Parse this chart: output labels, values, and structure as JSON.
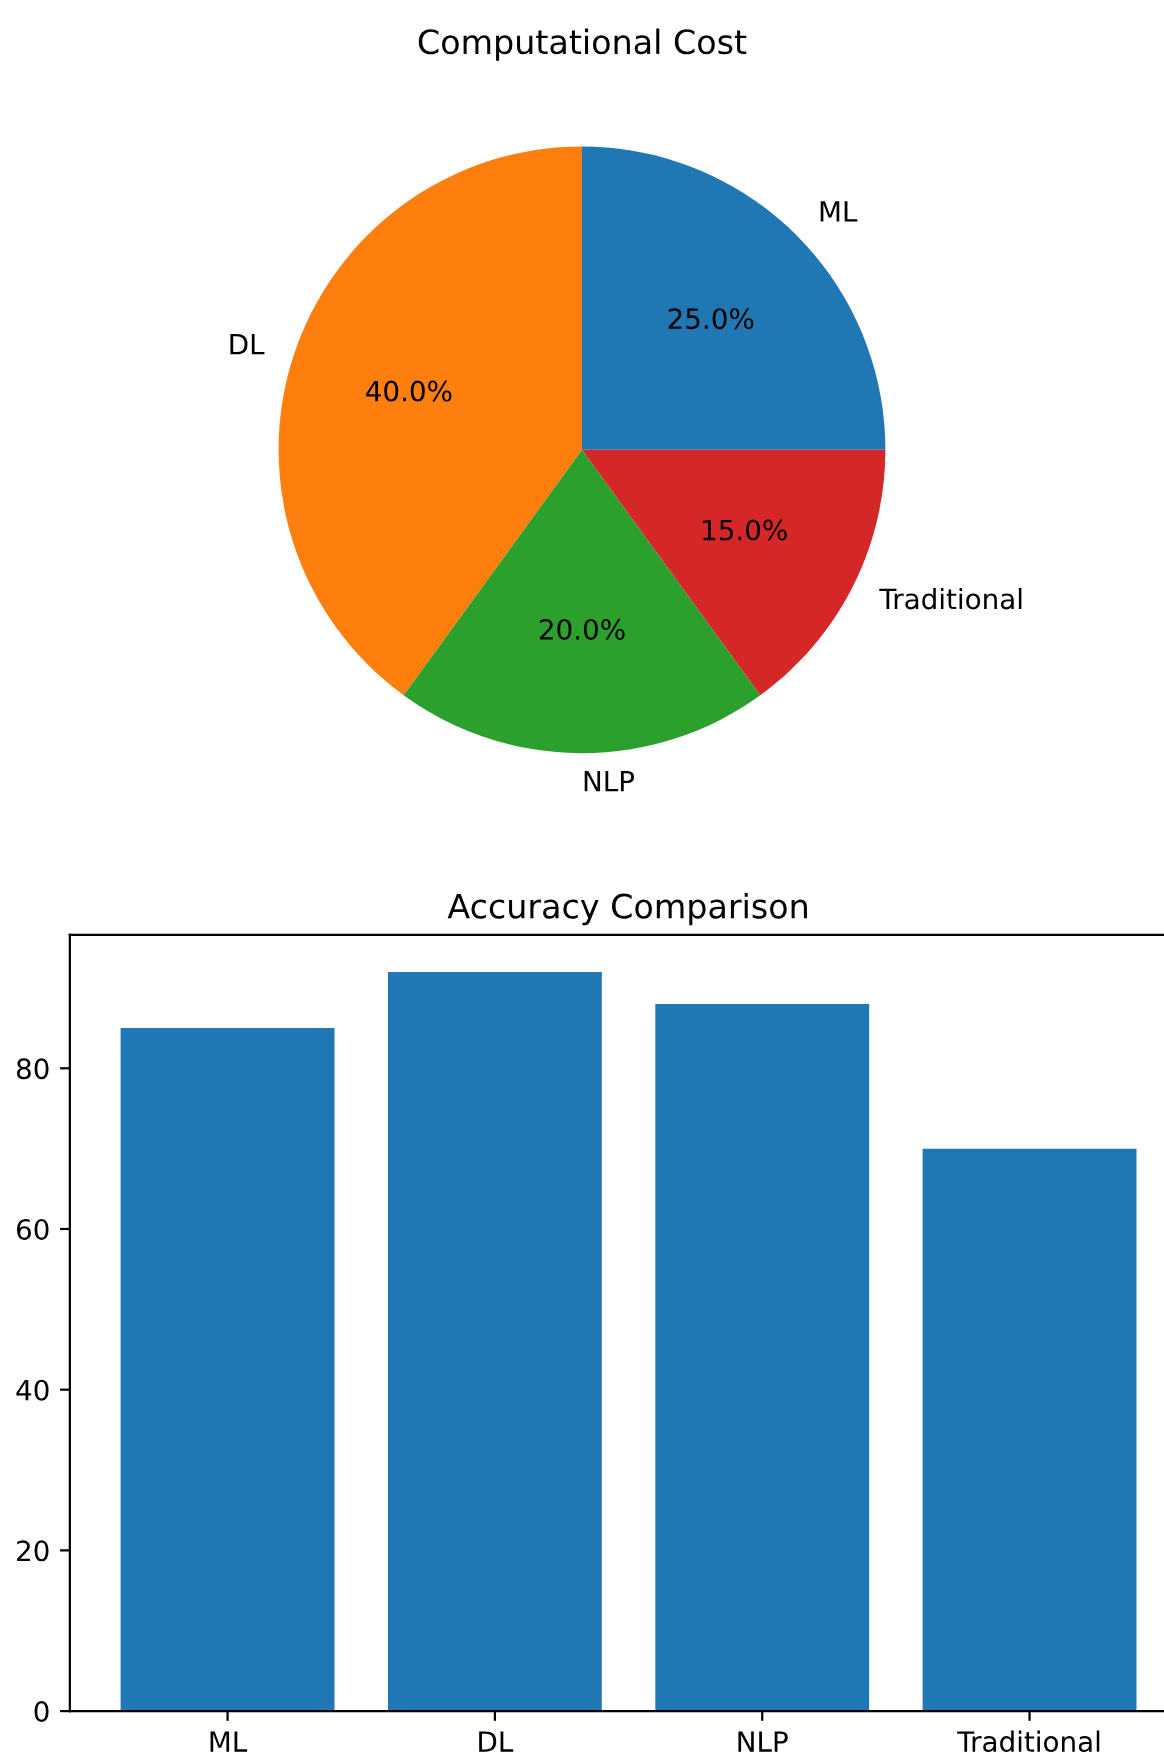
{
  "chart_data": [
    {
      "type": "pie",
      "title": "Computational Cost",
      "categories": [
        "ML",
        "DL",
        "NLP",
        "Traditional"
      ],
      "values": [
        25,
        40,
        20,
        15
      ],
      "value_labels": [
        "25.0%",
        "40.0%",
        "20.0%",
        "15.0%"
      ],
      "colors": [
        "#1f77b4",
        "#ff7f0e",
        "#2ca02c",
        "#d62728"
      ]
    },
    {
      "type": "bar",
      "title": "Accuracy Comparison",
      "categories": [
        "ML",
        "DL",
        "NLP",
        "Traditional"
      ],
      "values": [
        85,
        92,
        88,
        70
      ],
      "color": "#1f77b4",
      "ylim": [
        0,
        96.6
      ],
      "yticks": [
        0,
        20,
        40,
        60,
        80
      ]
    }
  ]
}
